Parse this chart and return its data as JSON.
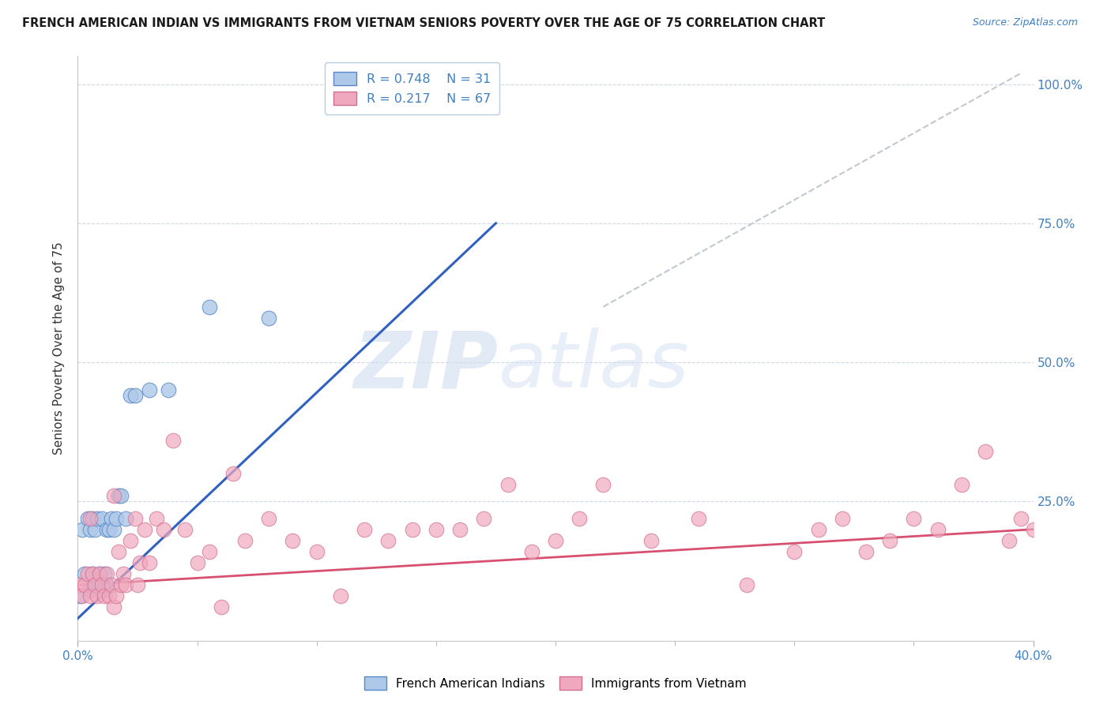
{
  "title": "FRENCH AMERICAN INDIAN VS IMMIGRANTS FROM VIETNAM SENIORS POVERTY OVER THE AGE OF 75 CORRELATION CHART",
  "source": "Source: ZipAtlas.com",
  "ylabel": "Seniors Poverty Over the Age of 75",
  "xlim": [
    0.0,
    0.4
  ],
  "ylim": [
    0.0,
    1.05
  ],
  "ytick_positions": [
    0.25,
    0.5,
    0.75,
    1.0
  ],
  "right_ytick_labels": [
    "25.0%",
    "50.0%",
    "75.0%",
    "100.0%"
  ],
  "legend_blue_R": "0.748",
  "legend_blue_N": "31",
  "legend_pink_R": "0.217",
  "legend_pink_N": "67",
  "blue_color": "#adc8e8",
  "pink_color": "#f0a8be",
  "blue_line_color": "#3060c0",
  "pink_line_color": "#d85070",
  "diag_line_color": "#c0c8d0",
  "watermark_zip": "ZIP",
  "watermark_atlas": "atlas",
  "blue_scatter_x": [
    0.001,
    0.002,
    0.003,
    0.004,
    0.005,
    0.005,
    0.006,
    0.006,
    0.007,
    0.007,
    0.008,
    0.008,
    0.009,
    0.01,
    0.01,
    0.011,
    0.012,
    0.012,
    0.013,
    0.014,
    0.015,
    0.016,
    0.017,
    0.018,
    0.02,
    0.022,
    0.024,
    0.03,
    0.038,
    0.055,
    0.08
  ],
  "blue_scatter_y": [
    0.08,
    0.2,
    0.12,
    0.22,
    0.09,
    0.2,
    0.12,
    0.22,
    0.1,
    0.2,
    0.1,
    0.22,
    0.12,
    0.09,
    0.22,
    0.12,
    0.1,
    0.2,
    0.2,
    0.22,
    0.2,
    0.22,
    0.26,
    0.26,
    0.22,
    0.44,
    0.44,
    0.45,
    0.45,
    0.6,
    0.58
  ],
  "pink_scatter_x": [
    0.001,
    0.002,
    0.003,
    0.004,
    0.005,
    0.006,
    0.007,
    0.008,
    0.009,
    0.01,
    0.011,
    0.012,
    0.013,
    0.014,
    0.015,
    0.016,
    0.017,
    0.018,
    0.019,
    0.02,
    0.022,
    0.024,
    0.026,
    0.028,
    0.03,
    0.033,
    0.036,
    0.04,
    0.045,
    0.05,
    0.055,
    0.06,
    0.065,
    0.07,
    0.08,
    0.09,
    0.1,
    0.11,
    0.12,
    0.13,
    0.14,
    0.15,
    0.16,
    0.17,
    0.18,
    0.19,
    0.2,
    0.21,
    0.22,
    0.24,
    0.26,
    0.28,
    0.3,
    0.31,
    0.32,
    0.33,
    0.34,
    0.35,
    0.36,
    0.37,
    0.38,
    0.39,
    0.395,
    0.4,
    0.005,
    0.015,
    0.025
  ],
  "pink_scatter_y": [
    0.1,
    0.08,
    0.1,
    0.12,
    0.08,
    0.12,
    0.1,
    0.08,
    0.12,
    0.1,
    0.08,
    0.12,
    0.08,
    0.1,
    0.06,
    0.08,
    0.16,
    0.1,
    0.12,
    0.1,
    0.18,
    0.22,
    0.14,
    0.2,
    0.14,
    0.22,
    0.2,
    0.36,
    0.2,
    0.14,
    0.16,
    0.06,
    0.3,
    0.18,
    0.22,
    0.18,
    0.16,
    0.08,
    0.2,
    0.18,
    0.2,
    0.2,
    0.2,
    0.22,
    0.28,
    0.16,
    0.18,
    0.22,
    0.28,
    0.18,
    0.22,
    0.1,
    0.16,
    0.2,
    0.22,
    0.16,
    0.18,
    0.22,
    0.2,
    0.28,
    0.34,
    0.18,
    0.22,
    0.2,
    0.22,
    0.26,
    0.1
  ],
  "blue_line_x": [
    0.0,
    0.175
  ],
  "blue_line_y": [
    0.04,
    0.75
  ],
  "pink_line_x": [
    0.0,
    0.4
  ],
  "pink_line_y": [
    0.1,
    0.2
  ],
  "diag_line_x": [
    0.22,
    0.395
  ],
  "diag_line_y": [
    0.6,
    1.02
  ]
}
